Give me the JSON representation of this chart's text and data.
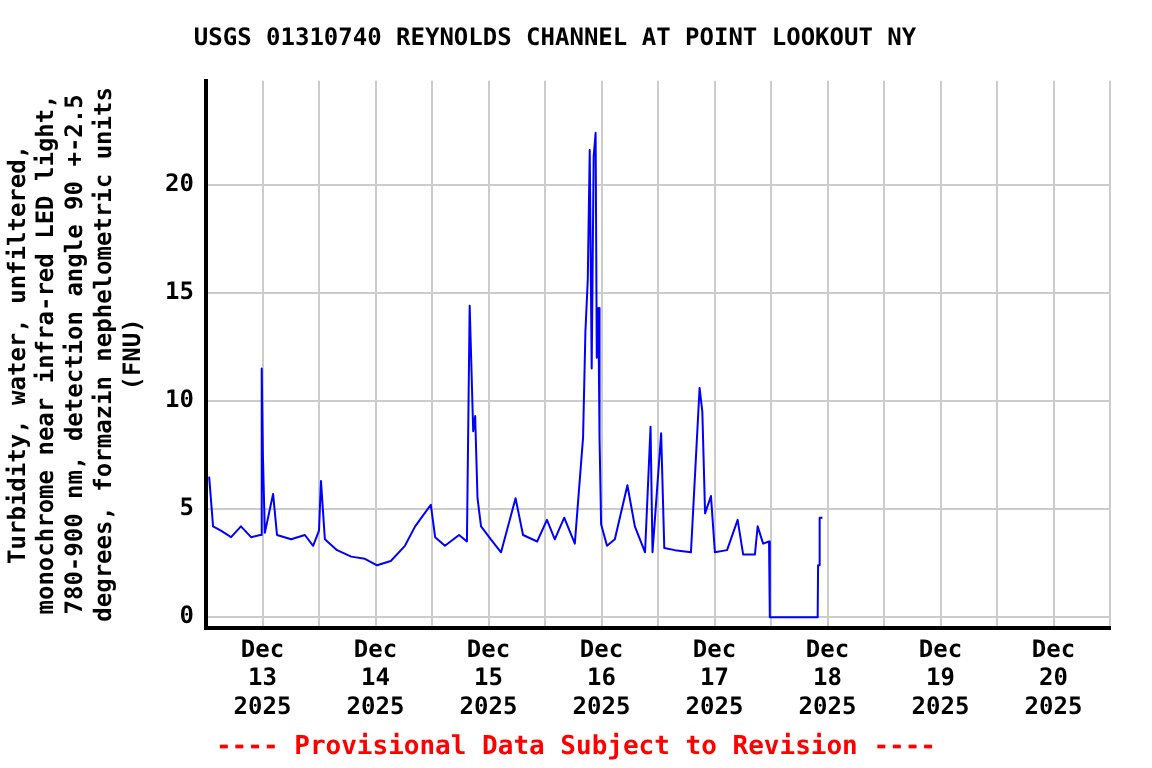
{
  "chart_data": {
    "type": "line",
    "title": "USGS 01310740 REYNOLDS CHANNEL AT POINT LOOKOUT NY",
    "ylabel": "Turbidity, water, unfiltered,\nmonochrome near infra-red LED light,\n780-900 nm, detection angle 90 +-2.5\ndegrees, formazin nephelometric units\n(FNU)",
    "annotations": [
      "---- Provisional Data Subject to Revision ----"
    ],
    "x": [
      "2025-12-13T00:40",
      "2025-12-13T01:30",
      "2025-12-13T03:10",
      "2025-12-13T05:20",
      "2025-12-13T07:25",
      "2025-12-13T09:35",
      "2025-12-13T11:30",
      "2025-12-13T11:50",
      "2025-12-13T12:05",
      "2025-12-13T12:30",
      "2025-12-13T14:15",
      "2025-12-13T15:05",
      "2025-12-13T18:05",
      "2025-12-13T21:00",
      "2025-12-13T22:45",
      "2025-12-14T00:00",
      "2025-12-14T00:25",
      "2025-12-14T01:15",
      "2025-12-14T03:50",
      "2025-12-14T06:50",
      "2025-12-14T09:45",
      "2025-12-14T12:20",
      "2025-12-14T15:15",
      "2025-12-14T18:15",
      "2025-12-14T20:25",
      "2025-12-14T23:45",
      "2025-12-15T00:40",
      "2025-12-15T02:45",
      "2025-12-15T05:45",
      "2025-12-15T07:25",
      "2025-12-15T08:00",
      "2025-12-15T08:15",
      "2025-12-15T08:45",
      "2025-12-15T09:10",
      "2025-12-15T09:40",
      "2025-12-15T10:25",
      "2025-12-15T12:30",
      "2025-12-15T14:40",
      "2025-12-15T17:45",
      "2025-12-15T19:20",
      "2025-12-15T22:20",
      "2025-12-16T00:25",
      "2025-12-16T02:05",
      "2025-12-16T04:05",
      "2025-12-16T06:20",
      "2025-12-16T08:05",
      "2025-12-16T08:35",
      "2025-12-16T09:05",
      "2025-12-16T09:30",
      "2025-12-16T09:55",
      "2025-12-16T10:20",
      "2025-12-16T10:45",
      "2025-12-16T11:00",
      "2025-12-16T11:20",
      "2025-12-16T11:35",
      "2025-12-16T11:55",
      "2025-12-16T13:10",
      "2025-12-16T14:50",
      "2025-12-16T17:30",
      "2025-12-16T19:05",
      "2025-12-16T21:15",
      "2025-12-16T22:25",
      "2025-12-16T22:50",
      "2025-12-17T00:40",
      "2025-12-17T01:20",
      "2025-12-17T03:35",
      "2025-12-17T07:00",
      "2025-12-17T08:50",
      "2025-12-17T09:25",
      "2025-12-17T10:00",
      "2025-12-17T11:15",
      "2025-12-17T12:05",
      "2025-12-17T14:40",
      "2025-12-17T16:55",
      "2025-12-17T18:05",
      "2025-12-17T20:35",
      "2025-12-17T21:10",
      "2025-12-17T22:20",
      "2025-12-17T23:35",
      "2025-12-17T23:45",
      "2025-12-18T09:55",
      "2025-12-18T10:00",
      "2025-12-18T10:20",
      "2025-12-18T10:55"
    ],
    "series": [
      {
        "color": "#0000ff",
        "values": [
          6.5,
          4.2,
          4.0,
          3.7,
          4.2,
          3.7,
          3.8,
          11.5,
          7.5,
          3.9,
          5.7,
          3.8,
          3.6,
          3.8,
          3.3,
          4.0,
          6.3,
          3.6,
          3.1,
          2.8,
          2.7,
          2.4,
          2.6,
          3.3,
          4.2,
          5.2,
          3.7,
          3.3,
          3.8,
          3.5,
          14.4,
          12.5,
          8.6,
          9.3,
          5.5,
          4.2,
          3.6,
          3.0,
          5.5,
          3.8,
          3.5,
          4.5,
          3.6,
          4.6,
          3.4,
          8.3,
          13.2,
          15.6,
          21.6,
          11.5,
          21.3,
          22.4,
          12.0,
          14.3,
          8.3,
          4.3,
          3.3,
          3.6,
          6.1,
          4.2,
          3.0,
          8.8,
          3.0,
          8.5,
          3.2,
          3.1,
          3.0,
          10.6,
          9.5,
          4.8,
          5.6,
          3.0,
          3.1,
          4.5,
          2.9,
          2.9,
          4.2,
          3.4,
          3.5,
          0,
          0,
          2.4,
          4.6,
          4.6
        ]
      }
    ],
    "xlim": [
      "2025-12-13T00:00",
      "2025-12-21T00:00"
    ],
    "xticks": [
      {
        "value": "2025-12-13T00:00",
        "label": null
      },
      {
        "value": "2025-12-13T12:00",
        "label": "Dec\n13\n2025"
      },
      {
        "value": "2025-12-14T00:00",
        "label": null
      },
      {
        "value": "2025-12-14T12:00",
        "label": "Dec\n14\n2025"
      },
      {
        "value": "2025-12-15T00:00",
        "label": null
      },
      {
        "value": "2025-12-15T12:00",
        "label": "Dec\n15\n2025"
      },
      {
        "value": "2025-12-16T00:00",
        "label": null
      },
      {
        "value": "2025-12-16T12:00",
        "label": "Dec\n16\n2025"
      },
      {
        "value": "2025-12-17T00:00",
        "label": null
      },
      {
        "value": "2025-12-17T12:00",
        "label": "Dec\n17\n2025"
      },
      {
        "value": "2025-12-18T00:00",
        "label": null
      },
      {
        "value": "2025-12-18T12:00",
        "label": "Dec\n18\n2025"
      },
      {
        "value": "2025-12-19T00:00",
        "label": null
      },
      {
        "value": "2025-12-19T12:00",
        "label": "Dec\n19\n2025"
      },
      {
        "value": "2025-12-20T00:00",
        "label": null
      },
      {
        "value": "2025-12-20T12:00",
        "label": "Dec\n20\n2025"
      },
      {
        "value": "2025-12-21T00:00",
        "label": null
      }
    ],
    "ylim": [
      -0.5,
      24.8
    ],
    "yticks": [
      0,
      5,
      10,
      15,
      20
    ],
    "grid": true,
    "legend": false,
    "marker": "none",
    "line_style": "solid"
  }
}
